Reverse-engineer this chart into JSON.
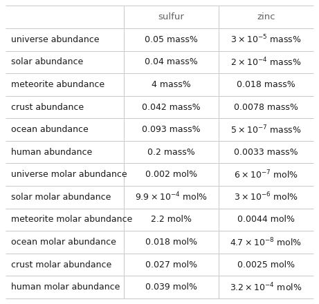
{
  "headers": [
    "",
    "sulfur",
    "zinc"
  ],
  "rows": [
    [
      "universe abundance",
      "0.05 mass%",
      "$3\\times10^{-5}$ mass%"
    ],
    [
      "solar abundance",
      "0.04 mass%",
      "$2\\times10^{-4}$ mass%"
    ],
    [
      "meteorite abundance",
      "4 mass%",
      "0.018 mass%"
    ],
    [
      "crust abundance",
      "0.042 mass%",
      "0.0078 mass%"
    ],
    [
      "ocean abundance",
      "0.093 mass%",
      "$5\\times10^{-7}$ mass%"
    ],
    [
      "human abundance",
      "0.2 mass%",
      "0.0033 mass%"
    ],
    [
      "universe molar abundance",
      "0.002 mol%",
      "$6\\times10^{-7}$ mol%"
    ],
    [
      "solar molar abundance",
      "$9.9\\times10^{-4}$ mol%",
      "$3\\times10^{-6}$ mol%"
    ],
    [
      "meteorite molar abundance",
      "2.2 mol%",
      "0.0044 mol%"
    ],
    [
      "ocean molar abundance",
      "0.018 mol%",
      "$4.7\\times10^{-8}$ mol%"
    ],
    [
      "crust molar abundance",
      "0.027 mol%",
      "0.0025 mol%"
    ],
    [
      "human molar abundance",
      "0.039 mol%",
      "$3.2\\times10^{-4}$ mol%"
    ]
  ],
  "background_color": "#ffffff",
  "line_color": "#c8c8c8",
  "text_color": "#1a1a1a",
  "header_text_color": "#606060",
  "font_size": 9.0,
  "header_font_size": 9.5,
  "fig_width": 4.61,
  "fig_height": 4.4,
  "dpi": 100
}
